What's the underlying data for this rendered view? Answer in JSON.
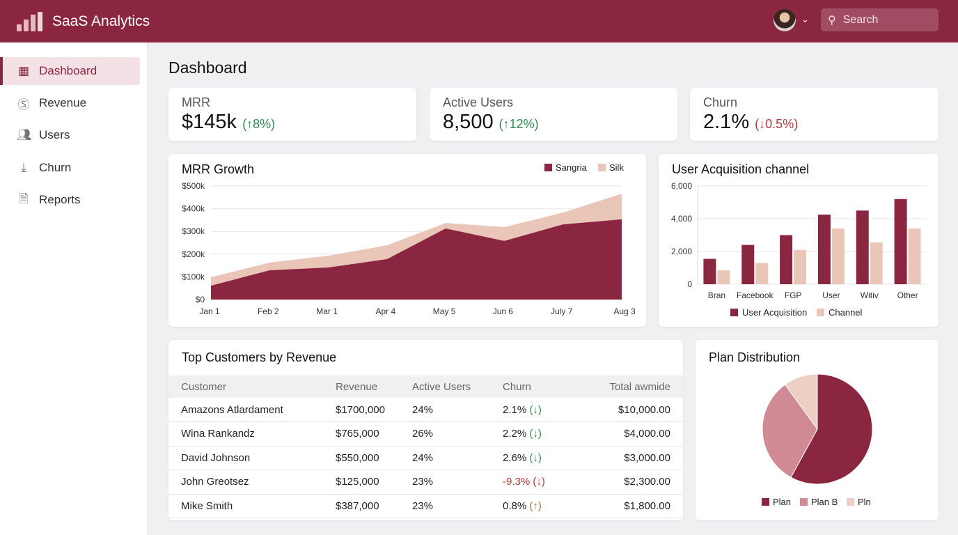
{
  "app": {
    "title": "SaaS Analytics",
    "search_placeholder": "Search",
    "brand_color": "#8b2641",
    "accent_light": "#e9c6b8"
  },
  "sidebar": {
    "items": [
      {
        "label": "Dashboard",
        "icon": "dashboard-icon",
        "active": true
      },
      {
        "label": "Revenue",
        "icon": "dollar-icon"
      },
      {
        "label": "Users",
        "icon": "users-icon"
      },
      {
        "label": "Churn",
        "icon": "churn-icon"
      },
      {
        "label": "Reports",
        "icon": "document-icon"
      }
    ]
  },
  "page": {
    "title": "Dashboard"
  },
  "kpis": [
    {
      "label": "MRR",
      "value": "$145k",
      "change": "(↑8%)",
      "trend": "up"
    },
    {
      "label": "Active Users",
      "value": "8,500",
      "change": "(↑12%)",
      "trend": "up"
    },
    {
      "label": "Churn",
      "value": "2.1%",
      "change": "(↓0.5%)",
      "trend": "down"
    }
  ],
  "chart_data": [
    {
      "type": "area",
      "title": "MRR Growth",
      "categories": [
        "Jan 1",
        "Feb 2",
        "Mar 1",
        "Apr 4",
        "May 5",
        "Jun 6",
        "July 7",
        "Aug 3"
      ],
      "yticks": [
        "$0",
        "$100k",
        "$200k",
        "$300k",
        "$400k",
        "$500k"
      ],
      "ylim": [
        0,
        500
      ],
      "yunit": "$k",
      "grid": true,
      "legend": "top-right",
      "series": [
        {
          "name": "Sangria",
          "color": "#8b2641",
          "values": [
            61,
            129,
            141,
            178,
            313,
            258,
            331,
            353
          ]
        },
        {
          "name": "Silk",
          "color": "#e9c6b8",
          "values": [
            98,
            163,
            193,
            239,
            337,
            319,
            383,
            466
          ]
        }
      ]
    },
    {
      "type": "bar",
      "title": "User Acquisition channel",
      "categories": [
        "Bran",
        "Facebook",
        "FGP",
        "User",
        "Witiv",
        "Other"
      ],
      "yticks": [
        "0",
        "2,000",
        "4,000",
        "6,000"
      ],
      "ylim": [
        0,
        6000
      ],
      "grid": true,
      "legend": "bottom",
      "series": [
        {
          "name": "User Acquisition",
          "color": "#8b2641",
          "values": [
            1550,
            2400,
            3000,
            4250,
            4500,
            5200
          ]
        },
        {
          "name": "Channel",
          "color": "#e9c6b8",
          "values": [
            850,
            1300,
            2100,
            3400,
            2550,
            3400
          ]
        }
      ]
    },
    {
      "type": "pie",
      "title": "Plan Distribution",
      "legend": "bottom",
      "slices": [
        {
          "name": "Plan",
          "value": 58,
          "color": "#8b2641"
        },
        {
          "name": "Plan B",
          "value": 32,
          "color": "#cf8a94"
        },
        {
          "name": "Pln",
          "value": 10,
          "color": "#ecd0c3"
        }
      ]
    }
  ],
  "table": {
    "title": "Top Customers by Revenue",
    "columns": [
      "Customer",
      "Revenue",
      "Active Users",
      "Churn",
      "Total awmide"
    ],
    "rows": [
      {
        "customer": "Amazons Atlardament",
        "revenue": "$1700,000",
        "active": "24%",
        "churn": "2.1%",
        "arrow": "(↓)",
        "churn_trend": "good",
        "total": "$10,000.00"
      },
      {
        "customer": "Wina Rankandz",
        "revenue": "$765,000",
        "active": "26%",
        "churn": "2.2%",
        "arrow": "(↓)",
        "churn_trend": "good",
        "total": "$4,000.00"
      },
      {
        "customer": "David Johnson",
        "revenue": "$550,000",
        "active": "24%",
        "churn": "2.6%",
        "arrow": "(↓)",
        "churn_trend": "good",
        "total": "$3,000.00"
      },
      {
        "customer": "John Greotsez",
        "revenue": "$125,000",
        "active": "23%",
        "churn": "-9.3%",
        "arrow": "(↓)",
        "churn_trend": "bad",
        "total": "$2,300.00"
      },
      {
        "customer": "Mike Smith",
        "revenue": "$387,000",
        "active": "23%",
        "churn": "0.8%",
        "arrow": "(↑)",
        "churn_trend": "warn",
        "total": "$1,800.00"
      }
    ]
  }
}
